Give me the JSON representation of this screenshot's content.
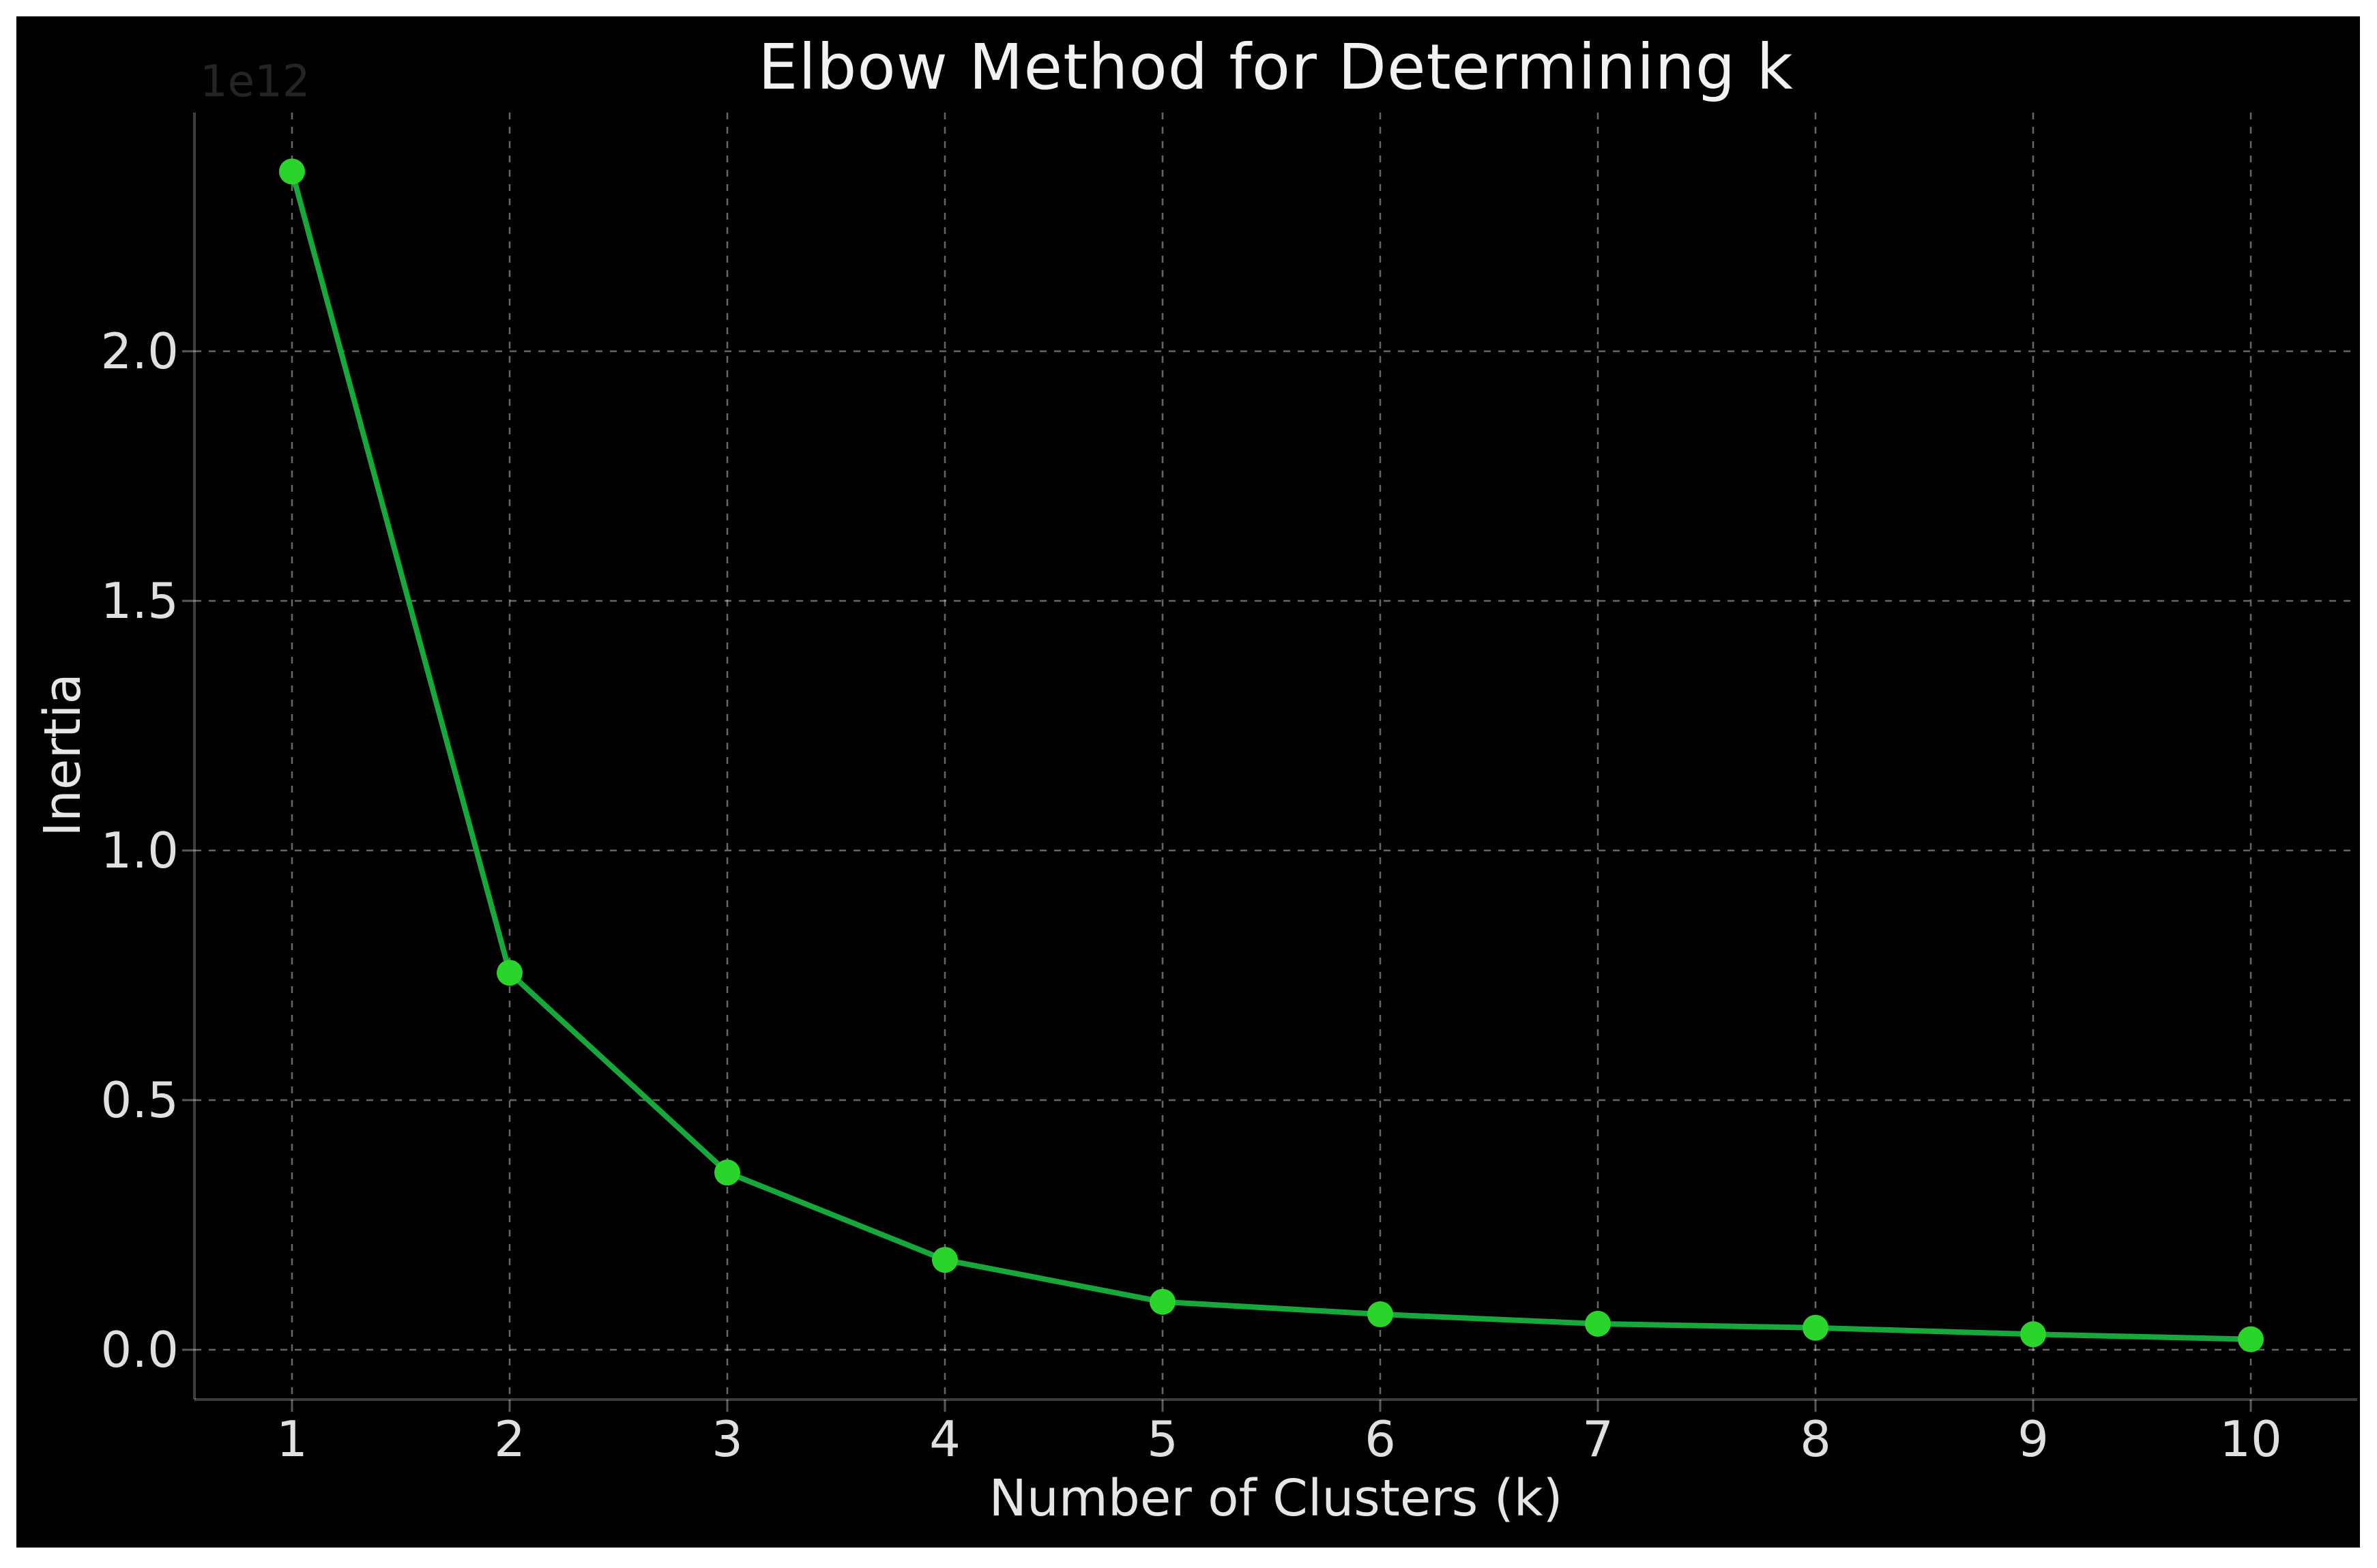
{
  "window": {
    "background_color": "#ffffff",
    "figure_background_color": "#000000"
  },
  "chart_data": {
    "type": "line",
    "title": "Elbow Method for Determining k",
    "xlabel": "Number of Clusters (k)",
    "ylabel": "Inertia",
    "y_offset_label": "1e12",
    "y_scale": 1000000000000.0,
    "x": [
      1,
      2,
      3,
      4,
      5,
      6,
      7,
      8,
      9,
      10
    ],
    "series": [
      {
        "name": "inertia",
        "values": [
          2.36,
          0.755,
          0.355,
          0.18,
          0.096,
          0.071,
          0.052,
          0.044,
          0.031,
          0.021
        ]
      }
    ],
    "x_tick_labels": [
      "1",
      "2",
      "3",
      "4",
      "5",
      "6",
      "7",
      "8",
      "9",
      "10"
    ],
    "y_tick_values": [
      0.0,
      0.5,
      1.0,
      1.5,
      2.0
    ],
    "y_tick_labels": [
      "0.0",
      "0.5",
      "1.0",
      "1.5",
      "2.0"
    ],
    "xlim": [
      0.55,
      10.45
    ],
    "ylim": [
      -0.1,
      2.48
    ],
    "grid": true,
    "grid_linestyle": "dashed",
    "marker": "o",
    "legend": null,
    "colors": {
      "line": "#17a83c",
      "marker": "#2bd42b",
      "background": "#000000",
      "title_text": "#f2f2f2",
      "label_text": "#e6e6e6",
      "tick_text": "#e0e0e0",
      "offset_text": "#242424",
      "grid": "rgba(255,255,255,0.40)",
      "spine": "rgba(255,255,255,0.24)",
      "tick_mark": "rgba(255,255,255,0.35)"
    }
  }
}
